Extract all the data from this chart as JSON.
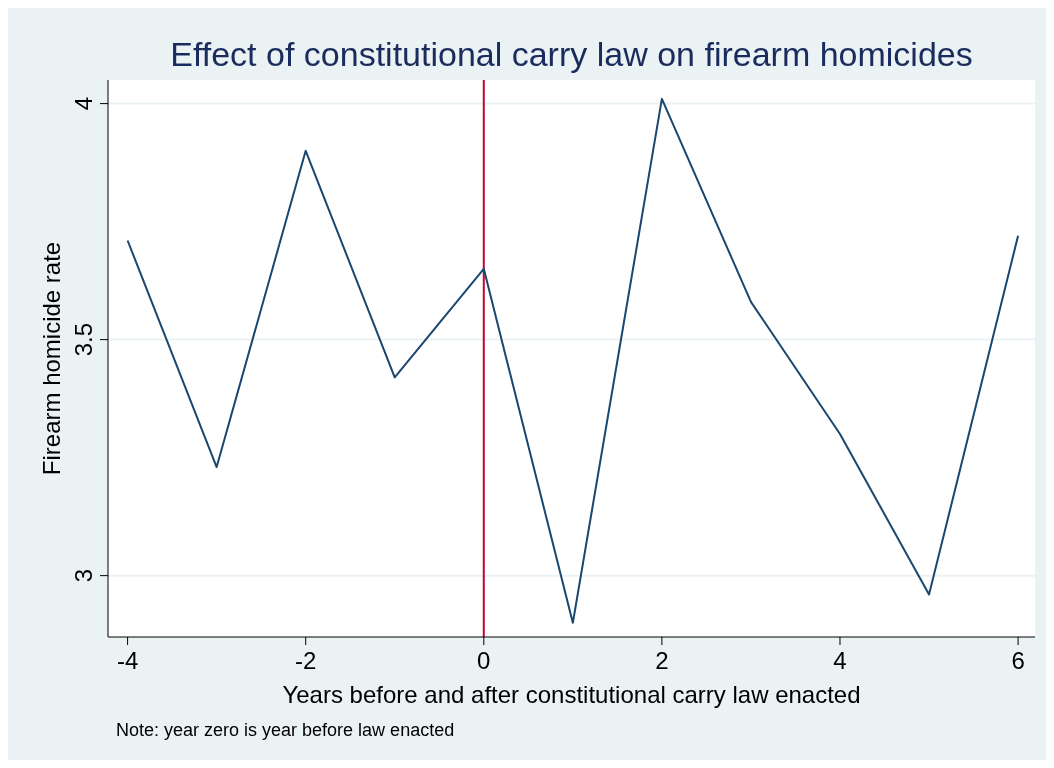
{
  "chart_data": {
    "type": "line",
    "title": "Effect of constitutional carry law on firearm homicides",
    "xlabel": "Years before and after constitutional carry law enacted",
    "ylabel": "Firearm homicide rate",
    "annotations": [
      "Note: year zero is year before law enacted"
    ],
    "x": [
      -4,
      -3,
      -2,
      -1,
      0,
      1,
      2,
      3,
      4,
      5,
      6
    ],
    "series": [
      {
        "color": "#1a476f",
        "values": [
          3.71,
          3.23,
          3.9,
          3.42,
          3.65,
          2.9,
          4.01,
          3.58,
          3.3,
          2.96,
          3.72
        ]
      }
    ],
    "xlim": [
      -4.22,
      6.19
    ],
    "xticks": [
      {
        "value": -4,
        "label": "-4"
      },
      {
        "value": -2,
        "label": "-2"
      },
      0,
      2,
      4,
      6
    ],
    "ylim": [
      2.87,
      4.05
    ],
    "yticks": [
      3,
      3.5,
      4
    ],
    "ref_lines": [
      {
        "axis": "x",
        "value": 0,
        "color": "#c10534"
      }
    ],
    "grid": "y",
    "marker": "none",
    "line_style": "solid"
  }
}
